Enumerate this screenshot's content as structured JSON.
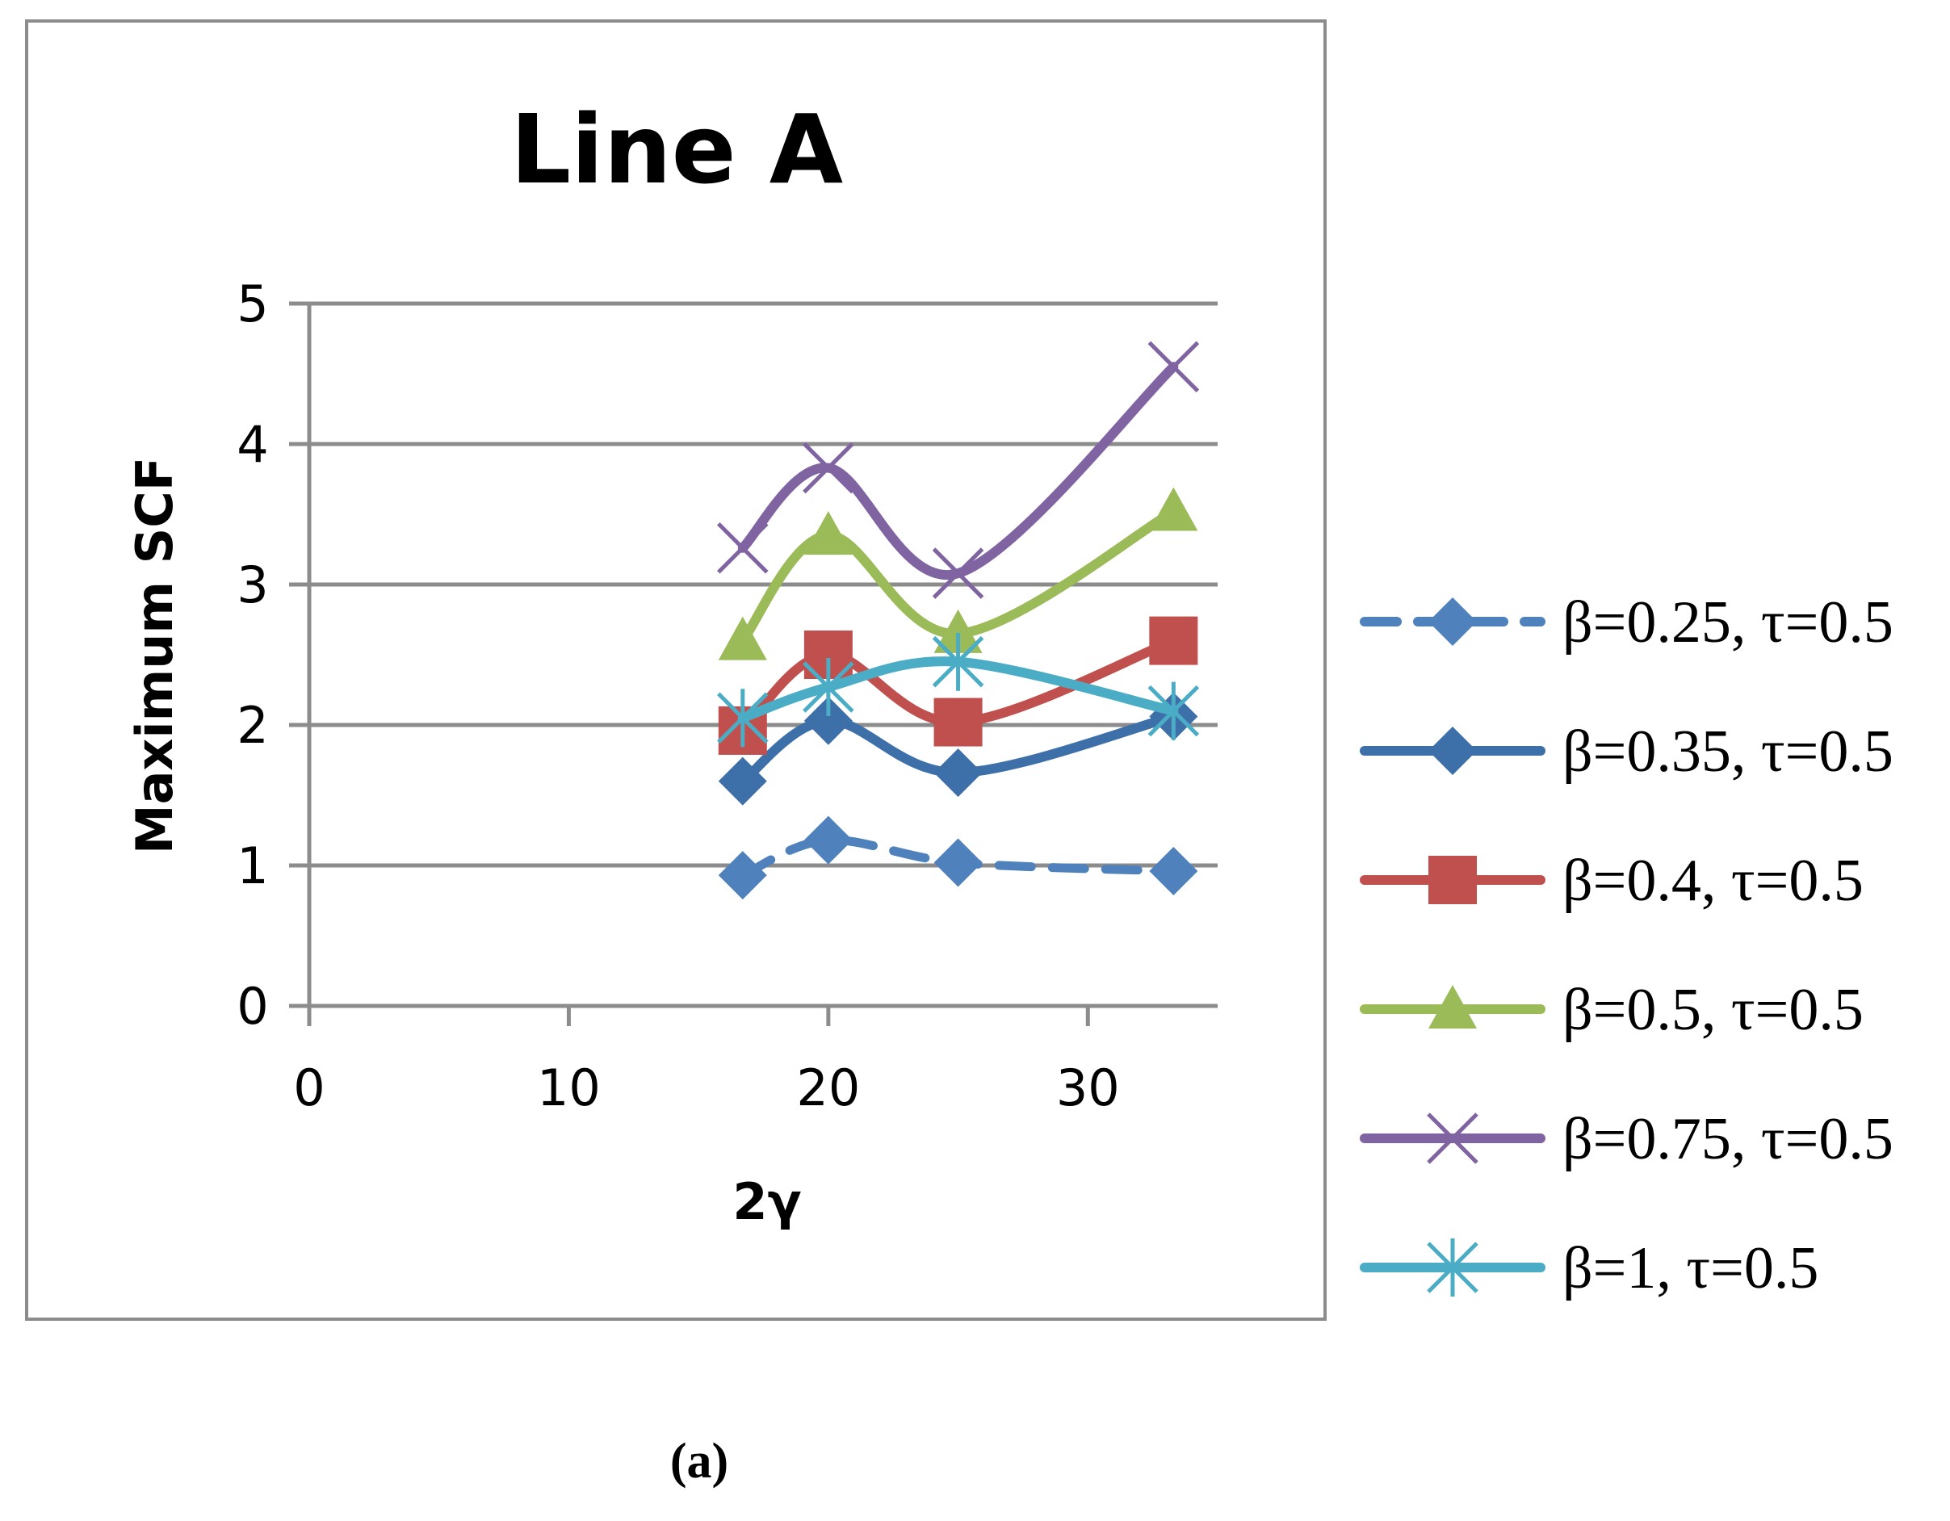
{
  "chart_data": {
    "type": "line",
    "title": "Line A",
    "xlabel": "2γ",
    "ylabel": "Maximum SCF",
    "xlim": [
      0,
      35
    ],
    "ylim": [
      0,
      5
    ],
    "x_ticks": [
      0,
      10,
      20,
      30
    ],
    "y_ticks": [
      0,
      1,
      2,
      3,
      4,
      5
    ],
    "grid": "horizontal",
    "legend_position": "right",
    "smooth": true,
    "x": [
      16.7,
      20,
      25,
      33.3
    ],
    "series": [
      {
        "name": "β=0.25, τ=0.5",
        "values": [
          0.93,
          1.18,
          1.02,
          0.96
        ],
        "color": "#4f81bd",
        "marker": "diamond",
        "dashed": true
      },
      {
        "name": "β=0.35, τ=0.5",
        "values": [
          1.6,
          2.03,
          1.66,
          2.06
        ],
        "color": "#3d6fa8",
        "marker": "diamond",
        "dashed": false
      },
      {
        "name": "β=0.4, τ=0.5",
        "values": [
          1.96,
          2.5,
          2.02,
          2.6
        ],
        "color": "#c0504d",
        "marker": "square",
        "dashed": false
      },
      {
        "name": "β=0.5, τ=0.5",
        "values": [
          2.6,
          3.35,
          2.65,
          3.52
        ],
        "color": "#9bbb59",
        "marker": "triangle",
        "dashed": false
      },
      {
        "name": "β=0.75, τ=0.5",
        "values": [
          3.26,
          3.83,
          3.08,
          4.55
        ],
        "color": "#8064a2",
        "marker": "x",
        "dashed": false
      },
      {
        "name": "β=1, τ=0.5",
        "values": [
          2.05,
          2.27,
          2.45,
          2.1
        ],
        "color": "#4bacc6",
        "marker": "star",
        "dashed": false
      }
    ]
  },
  "caption": "(a)"
}
